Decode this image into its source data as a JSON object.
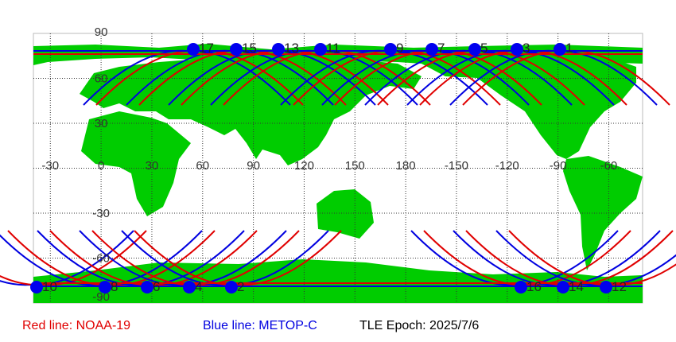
{
  "map": {
    "lat_labels": [
      "90",
      "60",
      "30",
      "-30",
      "-60",
      "-90"
    ],
    "lon_labels": [
      "-30",
      "0",
      "30",
      "60",
      "90",
      "120",
      "150",
      "180",
      "-150",
      "-120",
      "-90",
      "-60"
    ],
    "passes_north": [
      "17",
      "15",
      "13",
      "11",
      "9",
      "7",
      "5",
      "3",
      "1"
    ],
    "passes_south": [
      "10",
      "8",
      "6",
      "4",
      "2",
      "16",
      "14",
      "12"
    ]
  },
  "legend": {
    "red": "Red line: NOAA-19",
    "blue": "Blue line: METOP-C",
    "epoch": "TLE Epoch: 2025/7/6"
  }
}
